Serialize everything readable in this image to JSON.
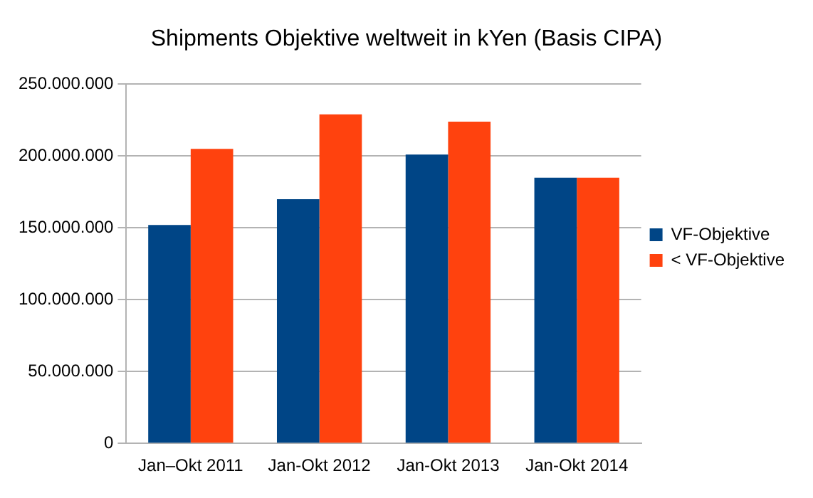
{
  "chart_data": {
    "type": "bar",
    "title": "Shipments Objektive weltweit in kYen (Basis CIPA)",
    "categories": [
      "Jan–Okt 2011",
      "Jan-Okt 2012",
      "Jan-Okt 2013",
      "Jan-Okt 2014"
    ],
    "series": [
      {
        "name": "VF-Objektive",
        "color": "#004586",
        "values": [
          152000000,
          170000000,
          201000000,
          185000000
        ]
      },
      {
        "name": "< VF-Objektive",
        "color": "#ff420e",
        "values": [
          205000000,
          229000000,
          224000000,
          185000000
        ]
      }
    ],
    "ylim": [
      0,
      250000000
    ],
    "yticks": [
      {
        "value": 0,
        "label": "0"
      },
      {
        "value": 50000000,
        "label": "50.000.000"
      },
      {
        "value": 100000000,
        "label": "100.000.000"
      },
      {
        "value": 150000000,
        "label": "150.000.000"
      },
      {
        "value": 200000000,
        "label": "200.000.000"
      },
      {
        "value": 250000000,
        "label": "250.000.000"
      }
    ],
    "grid": "y",
    "legend": "right"
  }
}
